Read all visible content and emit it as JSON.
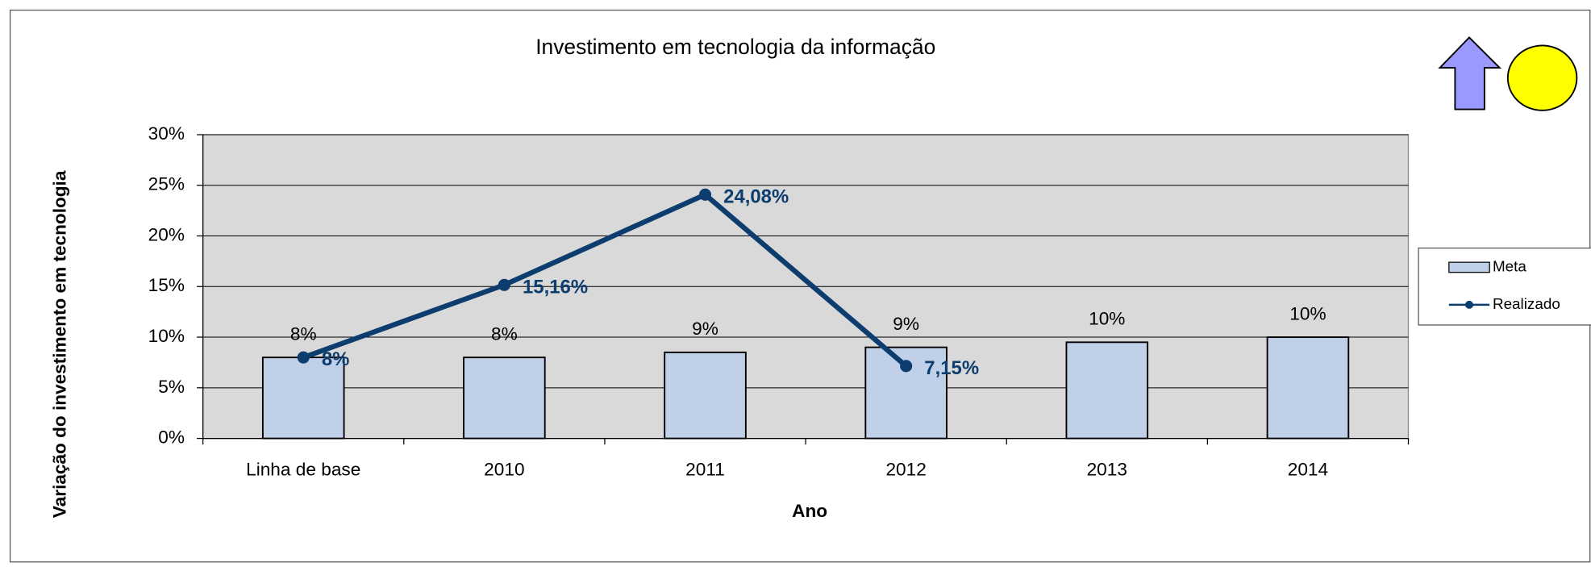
{
  "chart_data": {
    "type": "bar-line",
    "title": "Investimento em tecnologia da informação",
    "xlabel": "Ano",
    "ylabel": "Variação do investimento em tecnologia",
    "categories": [
      "Linha de base",
      "2010",
      "2011",
      "2012",
      "2013",
      "2014"
    ],
    "series": [
      {
        "name": "Meta",
        "type": "bar",
        "color": "#c0d0e8",
        "values": [
          8,
          8,
          8.5,
          9,
          9.5,
          10
        ],
        "value_labels": [
          "8%",
          "8%",
          "9%",
          "9%",
          "10%",
          "10%"
        ]
      },
      {
        "name": "Realizado",
        "type": "line",
        "color": "#0d3d6e",
        "values": [
          8,
          15.16,
          24.08,
          7.15,
          null,
          null
        ],
        "value_labels": [
          "8%",
          "15,16%",
          "24,08%",
          "7,15%",
          null,
          null
        ]
      }
    ],
    "ylim": [
      0,
      30
    ],
    "yticks": [
      {
        "value": 0,
        "label": "0%"
      },
      {
        "value": 5,
        "label": "5%"
      },
      {
        "value": 10,
        "label": "10%"
      },
      {
        "value": 15,
        "label": "15%"
      },
      {
        "value": 20,
        "label": "20%"
      },
      {
        "value": 25,
        "label": "25%"
      },
      {
        "value": 30,
        "label": "30%"
      }
    ],
    "grid": true,
    "legend": "right"
  }
}
